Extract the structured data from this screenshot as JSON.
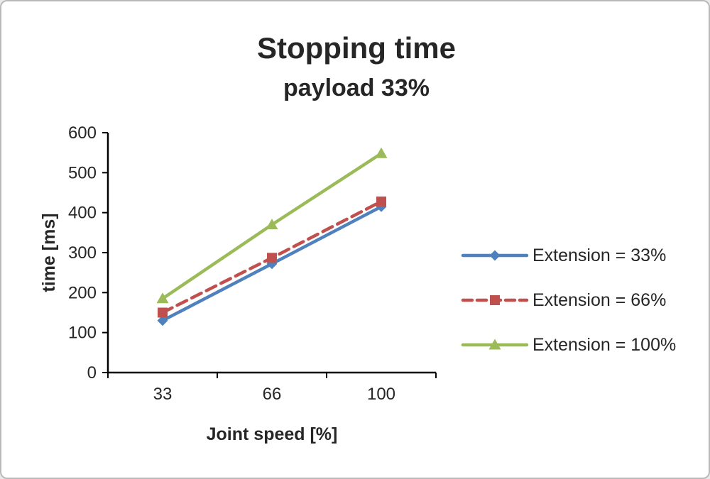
{
  "chart": {
    "title": "Stopping time",
    "subtitle": "payload 33%",
    "xlabel": "Joint speed [%]",
    "ylabel": "time [ms]"
  },
  "chart_data": {
    "type": "line",
    "categories": [
      "33",
      "66",
      "100"
    ],
    "series": [
      {
        "name": "Extension = 33%",
        "values": [
          130,
          272,
          415
        ],
        "color": "#4f81bd",
        "marker": "diamond",
        "dash": "solid"
      },
      {
        "name": "Extension = 66%",
        "values": [
          150,
          287,
          428
        ],
        "color": "#c0504d",
        "marker": "square",
        "dash": "dashed"
      },
      {
        "name": "Extension = 100%",
        "values": [
          185,
          370,
          548
        ],
        "color": "#9bbb59",
        "marker": "triangle",
        "dash": "solid"
      }
    ],
    "title": "Stopping time — payload 33%",
    "xlabel": "Joint speed [%]",
    "ylabel": "time [ms]",
    "ylim": [
      0,
      600
    ],
    "ytick_step": 100,
    "grid": false,
    "legend_position": "right"
  }
}
